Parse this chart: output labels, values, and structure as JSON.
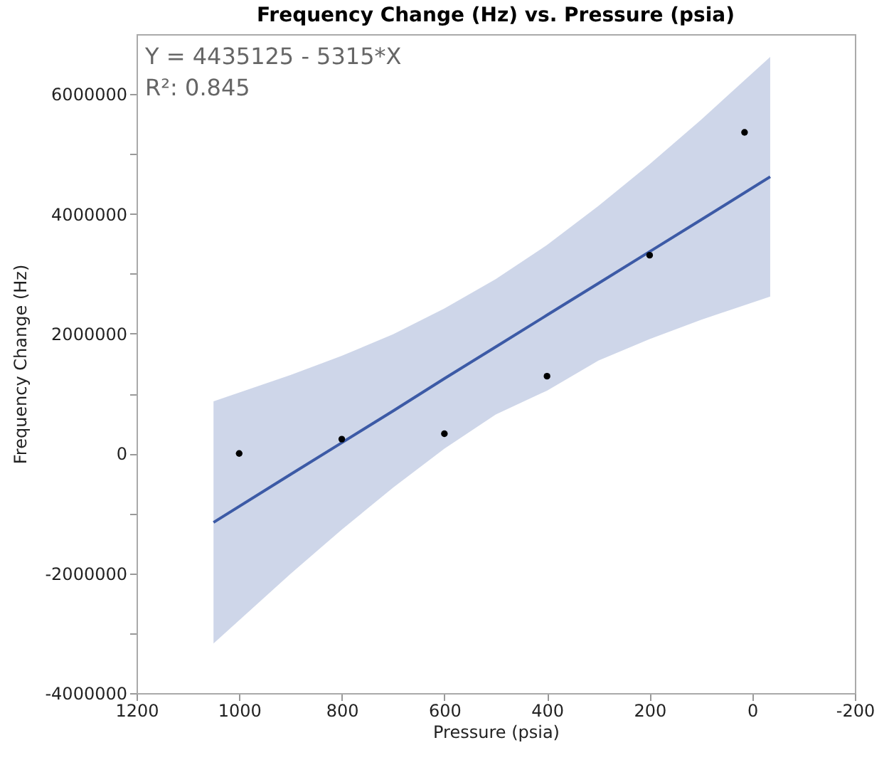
{
  "chart_data": {
    "type": "scatter",
    "title": "Frequency Change (Hz) vs. Pressure (psia)",
    "xlabel": "Pressure (psia)",
    "ylabel": "Frequency Change (Hz)",
    "annotations": [
      "Y = 4435125 - 5315*X",
      "R²: 0.845"
    ],
    "xlim": [
      1200,
      -200
    ],
    "xticks": [
      1200,
      1000,
      800,
      600,
      400,
      200,
      0,
      -200
    ],
    "ylim": [
      -4000000,
      7000000
    ],
    "yticks": [
      -4000000,
      {
        "value": -3000000,
        "label": null
      },
      -2000000,
      {
        "value": -1000000,
        "label": null
      },
      0,
      {
        "value": 1000000,
        "label": null
      },
      2000000,
      {
        "value": 3000000,
        "label": null
      },
      4000000,
      {
        "value": 5000000,
        "label": null
      },
      6000000
    ],
    "grid": false,
    "series": [
      {
        "type": "line",
        "color": "#3c5aa6",
        "line_style": "solid",
        "x": [
          1050,
          900,
          800,
          700,
          600,
          500,
          400,
          300,
          200,
          100,
          -35
        ],
        "values": [
          -1150000,
          -350000,
          180000,
          710000,
          1250000,
          1780000,
          2310000,
          2840000,
          3370000,
          3900000,
          4620000
        ],
        "lower": [
          -3170000,
          -2010000,
          -1270000,
          -570000,
          80000,
          650000,
          1050000,
          1550000,
          1910000,
          2230000,
          2620000
        ],
        "upper": [
          870000,
          1310000,
          1630000,
          1990000,
          2420000,
          2910000,
          3480000,
          4130000,
          4830000,
          5570000,
          6620000
        ]
      },
      {
        "marker": "circle",
        "color": "#000000",
        "x": [
          1000,
          800,
          600,
          400,
          200,
          15
        ],
        "values": [
          0,
          240000,
          330000,
          1290000,
          3310000,
          5360000
        ]
      }
    ]
  }
}
